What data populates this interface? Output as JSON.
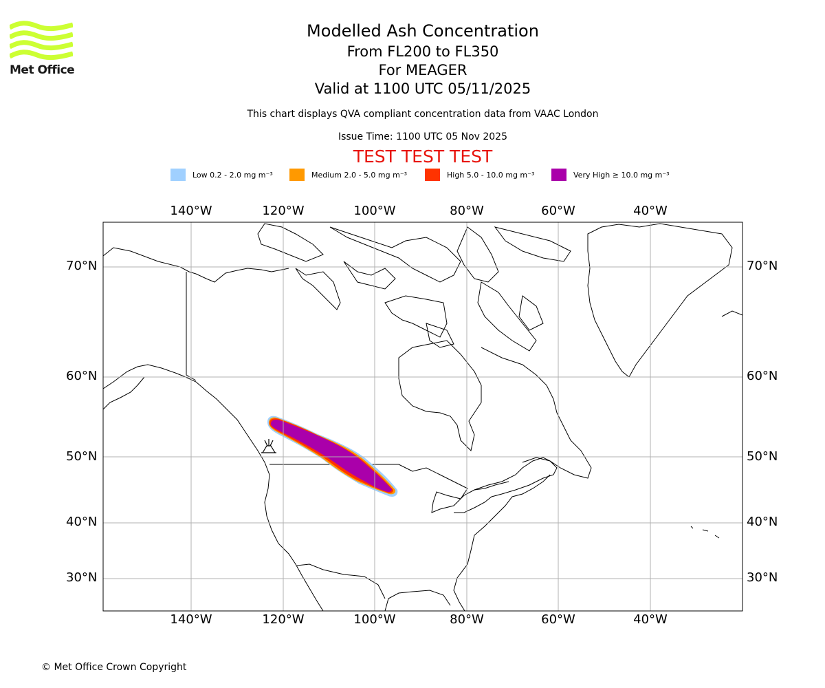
{
  "logo": {
    "text": "Met Office",
    "color": "#ccff33"
  },
  "header": {
    "title": "Modelled Ash Concentration",
    "levels": "From FL200 to FL350",
    "volcano": "For MEAGER",
    "valid": "Valid at 1100 UTC 05/11/2025",
    "description": "This chart displays QVA compliant concentration data from VAAC London",
    "issue_time": "Issue Time: 1100 UTC 05 Nov 2025",
    "test_banner": "TEST TEST TEST"
  },
  "legend": [
    {
      "label": "Low 0.2 - 2.0 mg m⁻³",
      "color": "#a0d0ff"
    },
    {
      "label": "Medium 2.0 - 5.0 mg m⁻³",
      "color": "#ff9900"
    },
    {
      "label": "High 5.0 - 10.0 mg m⁻³",
      "color": "#ff3300"
    },
    {
      "label": "Very High  ≥  10.0 mg m⁻³",
      "color": "#aa00aa"
    }
  ],
  "map": {
    "lon_labels": [
      "140°W",
      "120°W",
      "100°W",
      "80°W",
      "60°W",
      "40°W"
    ],
    "lat_labels": [
      "70°N",
      "60°N",
      "50°N",
      "40°N",
      "30°N"
    ]
  },
  "footer": {
    "copyright": "© Met Office Crown Copyright"
  }
}
